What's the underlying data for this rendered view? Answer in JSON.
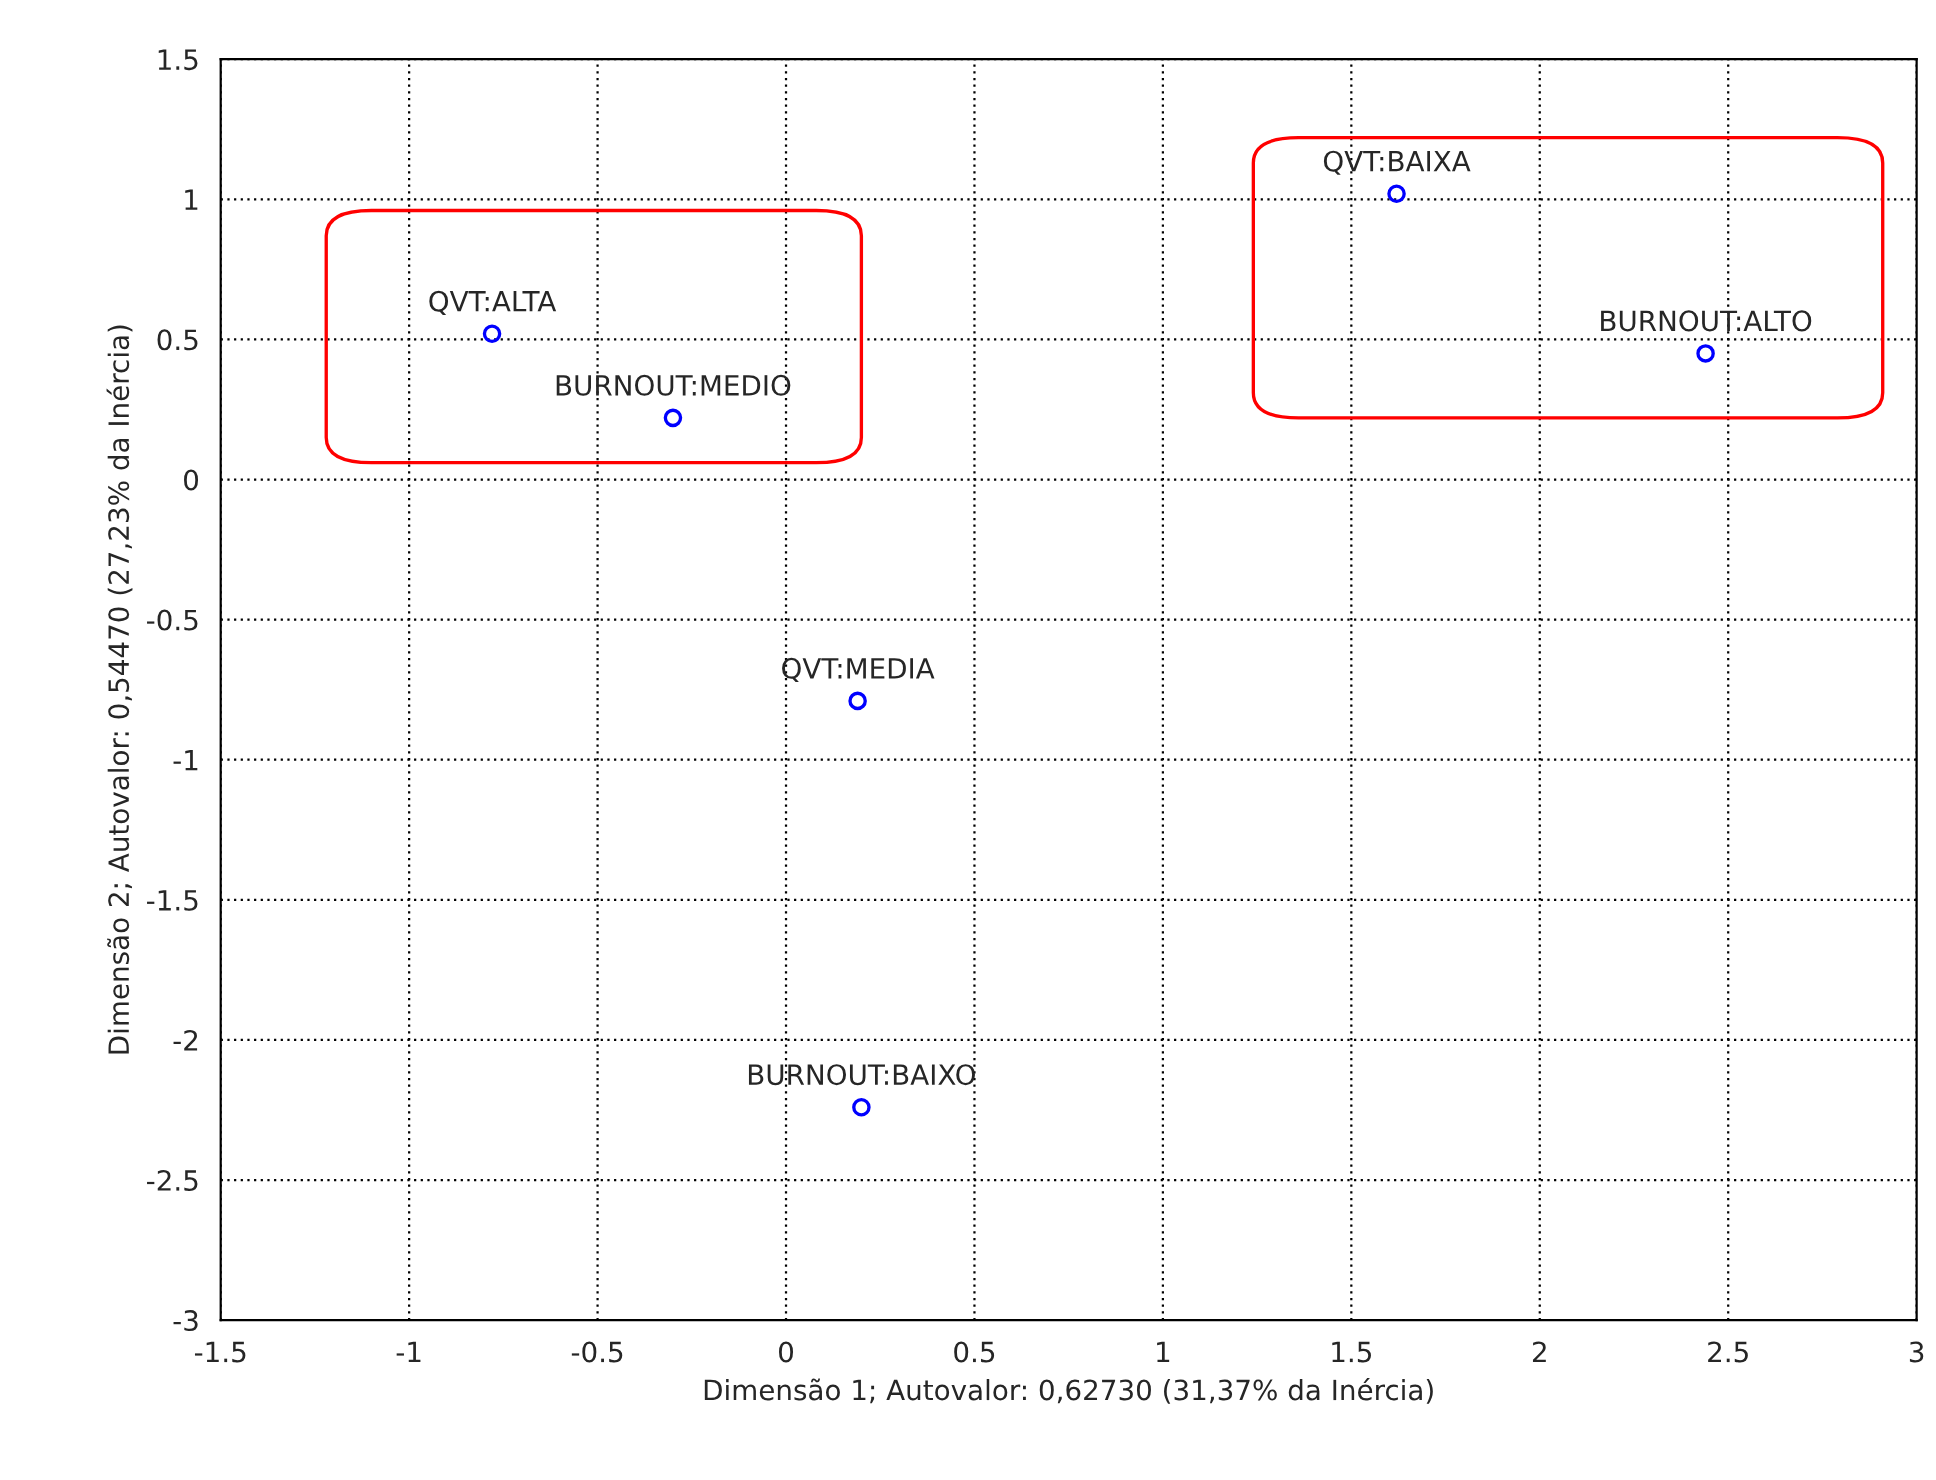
{
  "chart_data": {
    "type": "scatter",
    "xlabel": "Dimensão 1; Autovalor: 0,62730 (31,37% da Inércia)",
    "ylabel": "Dimensão 2; Autovalor: 0,54470 (27,23% da Inércia)",
    "x": [
      -0.78,
      -0.3,
      1.62,
      2.44,
      0.19,
      0.2
    ],
    "series": [
      {
        "color": "#0000ff",
        "values": [
          0.52,
          0.22,
          1.02,
          0.45,
          -0.79,
          -2.24
        ]
      }
    ],
    "annotations": [
      {
        "text": "QVT:ALTA",
        "x": -0.78,
        "y": 0.52
      },
      {
        "text": "BURNOUT:MEDIO",
        "x": -0.3,
        "y": 0.22
      },
      {
        "text": "QVT:BAIXA",
        "x": 1.62,
        "y": 1.02
      },
      {
        "text": "BURNOUT:ALTO",
        "x": 2.44,
        "y": 0.45
      },
      {
        "text": "QVT:MEDIA",
        "x": 0.19,
        "y": -0.79
      },
      {
        "text": "BURNOUT:BAIXO",
        "x": 0.2,
        "y": -2.24
      }
    ],
    "xlim": [
      -1.5,
      3
    ],
    "ylim": [
      -3,
      1.5
    ],
    "xticks": [
      -1.5,
      -1,
      -0.5,
      0,
      0.5,
      1,
      1.5,
      2,
      2.5,
      3
    ],
    "yticks": [
      -3,
      -2.5,
      -2,
      -1.5,
      -1,
      -0.5,
      0,
      0.5,
      1,
      1.5
    ],
    "grid": true,
    "marker": "circle"
  }
}
